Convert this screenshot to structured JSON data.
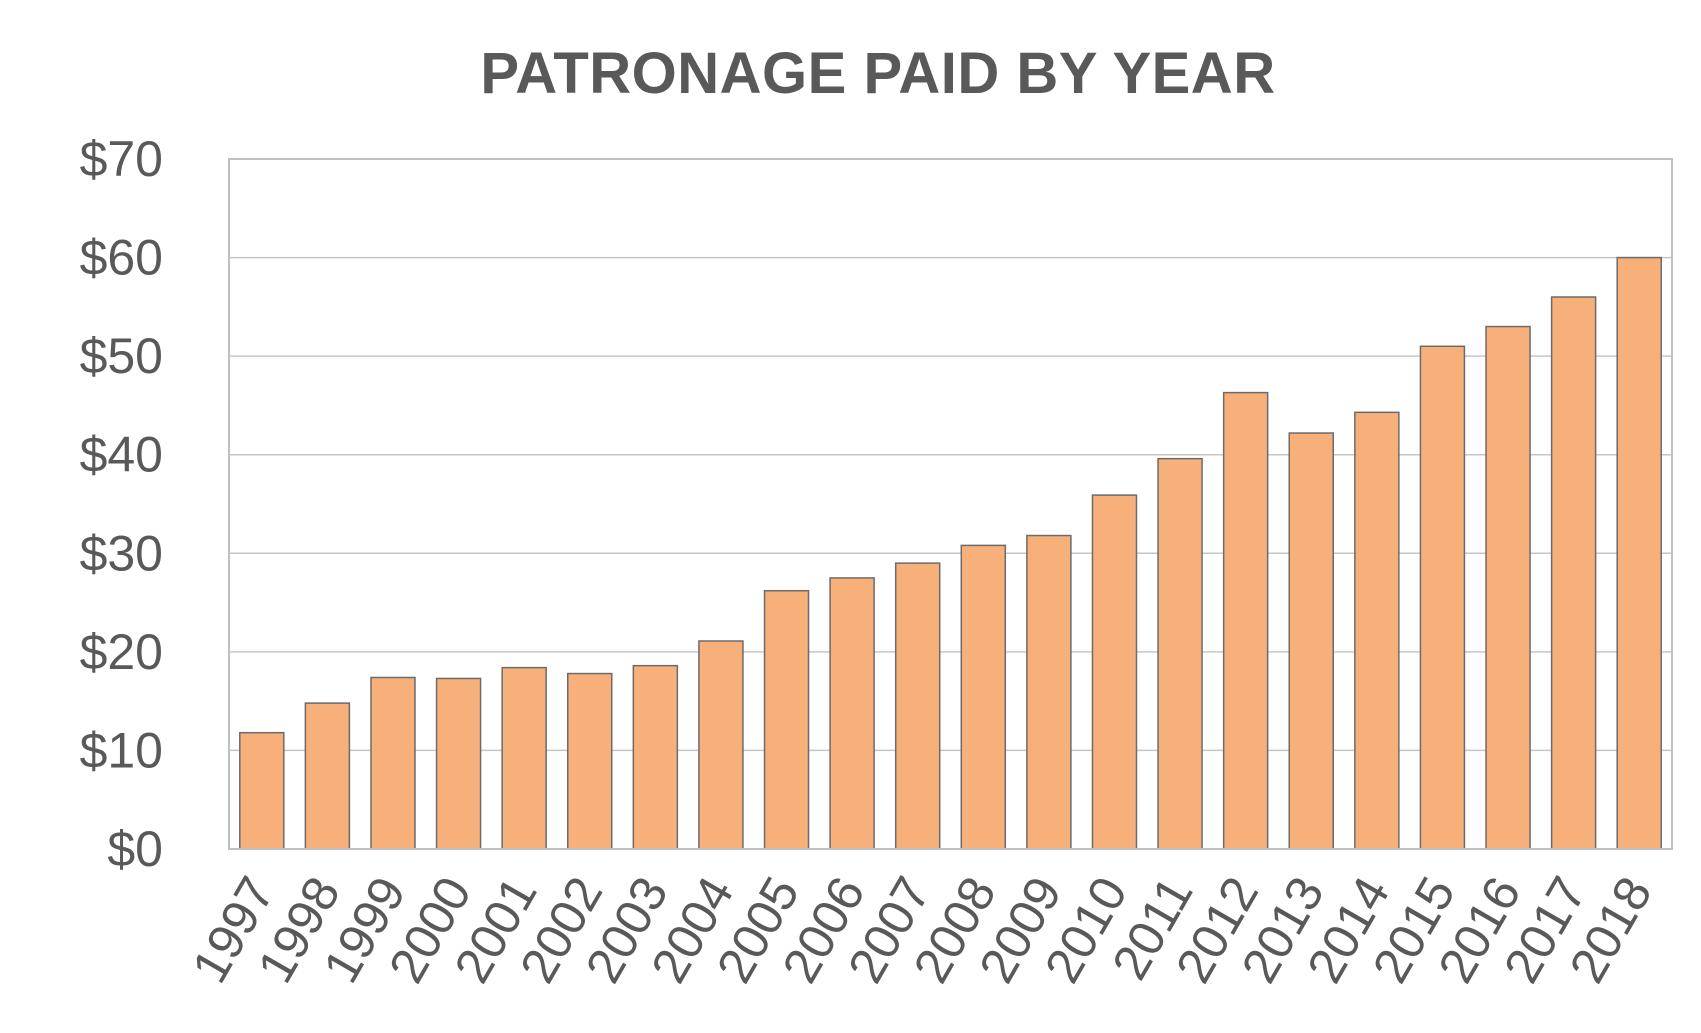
{
  "chart_data": {
    "type": "bar",
    "title": "PATRONAGE PAID BY YEAR",
    "xlabel": "",
    "ylabel": "",
    "categories": [
      "1997",
      "1998",
      "1999",
      "2000",
      "2001",
      "2002",
      "2003",
      "2004",
      "2005",
      "2006",
      "2007",
      "2008",
      "2009",
      "2010",
      "2011",
      "2012",
      "2013",
      "2014",
      "2015",
      "2016",
      "2017",
      "2018"
    ],
    "series": [
      {
        "values": [
          11.8,
          14.8,
          17.4,
          17.3,
          18.4,
          17.8,
          18.6,
          21.1,
          26.2,
          27.5,
          29.0,
          30.8,
          31.8,
          35.9,
          39.6,
          46.3,
          42.2,
          44.3,
          51.0,
          53.0,
          56.0,
          60.0
        ]
      }
    ],
    "ylim": [
      0,
      70
    ],
    "yticks": [
      0,
      10,
      20,
      30,
      40,
      50,
      60,
      70
    ],
    "ytick_labels": [
      "$0",
      "$10",
      "$20",
      "$30",
      "$40",
      "$50",
      "$60",
      "$70"
    ],
    "grid": true,
    "legend": "none",
    "colors": {
      "bar_fill": "#f7b07a",
      "bar_stroke": "#6b6b6b",
      "grid": "#c6c6c6",
      "text": "#595959"
    }
  }
}
